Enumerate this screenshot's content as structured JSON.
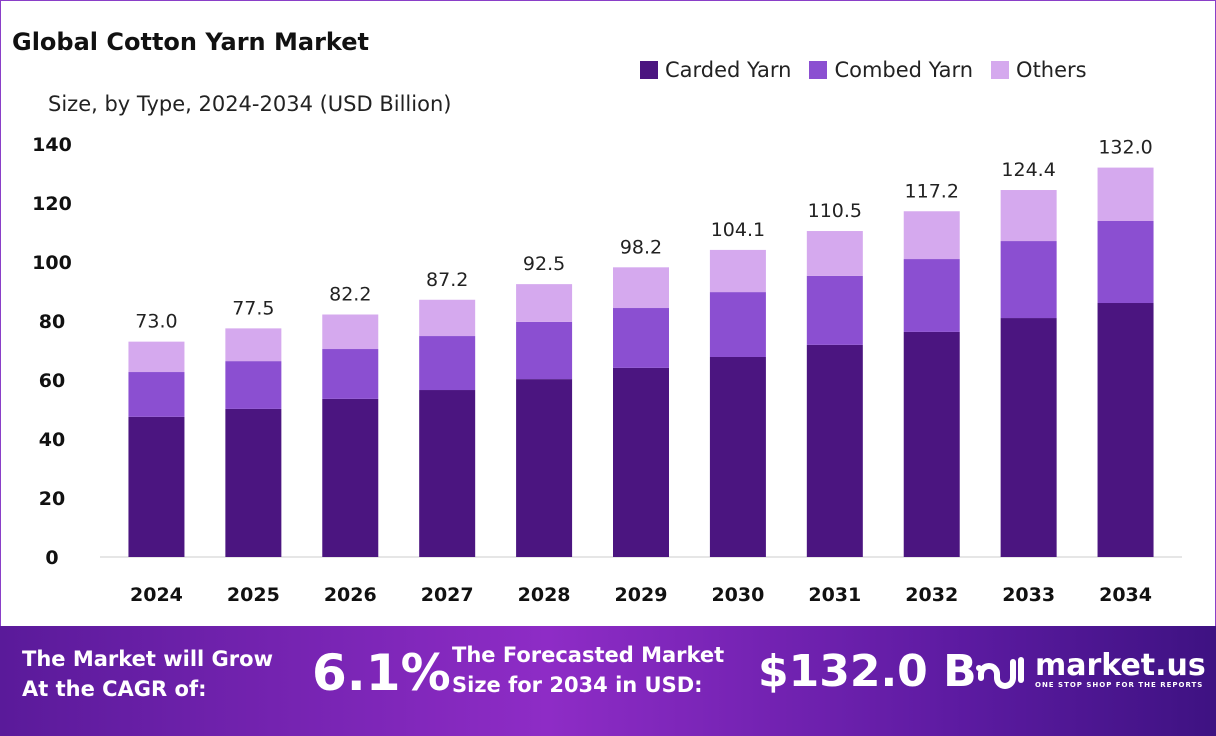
{
  "chart_data": {
    "type": "bar",
    "stacked": true,
    "title": "Global Cotton Yarn Market",
    "subtitle": "Size, by Type, 2024-2034 (USD Billion)",
    "categories": [
      "2024",
      "2025",
      "2026",
      "2027",
      "2028",
      "2029",
      "2030",
      "2031",
      "2032",
      "2033",
      "2034"
    ],
    "series": [
      {
        "name": "Carded Yarn",
        "color": "#4b1580",
        "values": [
          47.5,
          50.2,
          53.6,
          56.6,
          60.3,
          64.1,
          67.8,
          71.9,
          76.3,
          81.0,
          86.1
        ]
      },
      {
        "name": "Combed Yarn",
        "color": "#8b4fd1",
        "values": [
          15.2,
          16.2,
          16.9,
          18.3,
          19.4,
          20.3,
          22.0,
          23.4,
          24.7,
          26.1,
          27.8
        ]
      },
      {
        "name": "Others",
        "color": "#d5a9ee",
        "values": [
          10.3,
          11.1,
          11.7,
          12.3,
          12.8,
          13.8,
          14.3,
          15.2,
          16.2,
          17.3,
          18.1
        ]
      }
    ],
    "totals": [
      "73.0",
      "77.5",
      "82.2",
      "87.2",
      "92.5",
      "98.2",
      "104.1",
      "110.5",
      "117.2",
      "124.4",
      "132.0"
    ],
    "ylim": [
      0,
      140
    ],
    "yticks": [
      "0",
      "20",
      "40",
      "60",
      "80",
      "100",
      "120",
      "140"
    ],
    "grid": false,
    "legend_position": "top-right"
  },
  "footer": {
    "cagr_label": "The Market will Grow At the CAGR of:",
    "cagr_value": "6.1%",
    "forecast_label": "The Forecasted Market Size for 2034 in USD:",
    "forecast_value": "$132.0 B",
    "logo_text": "market.us",
    "logo_tagline": "ONE STOP SHOP FOR THE REPORTS"
  }
}
